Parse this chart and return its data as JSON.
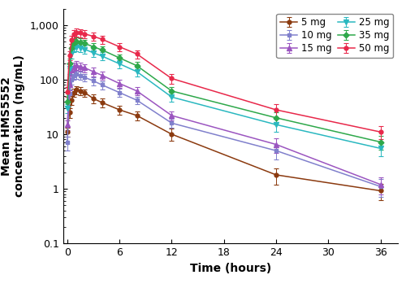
{
  "xlabel": "Time (hours)",
  "ylabel": "Mean HMS5552\nconcentration (ng/mL)",
  "ylim": [
    0.1,
    2000
  ],
  "xlim": [
    -0.5,
    38
  ],
  "xticks": [
    0,
    6,
    12,
    18,
    24,
    30,
    36
  ],
  "series": [
    {
      "label": "5 mg",
      "color": "#8B3A0F",
      "marker": "o",
      "msize": 3.5,
      "time": [
        0,
        0.25,
        0.5,
        0.75,
        1,
        1.5,
        2,
        3,
        4,
        6,
        8,
        12,
        24,
        36
      ],
      "mean": [
        11,
        25,
        42,
        58,
        65,
        62,
        58,
        45,
        38,
        28,
        22,
        10,
        1.8,
        0.92
      ],
      "err_lo": [
        2,
        5,
        8,
        10,
        11,
        10,
        9,
        8,
        7,
        5,
        4,
        2.5,
        0.6,
        0.3
      ],
      "err_hi": [
        2,
        5,
        8,
        10,
        11,
        10,
        9,
        8,
        7,
        5,
        4,
        2.5,
        0.6,
        0.3
      ]
    },
    {
      "label": "10 mg",
      "color": "#8080CC",
      "marker": "s",
      "msize": 3.5,
      "time": [
        0,
        0.25,
        0.5,
        0.75,
        1,
        1.5,
        2,
        3,
        4,
        6,
        8,
        12,
        24,
        36
      ],
      "mean": [
        7,
        55,
        100,
        120,
        125,
        120,
        110,
        95,
        80,
        58,
        42,
        16,
        5.0,
        1.1
      ],
      "err_lo": [
        2,
        12,
        18,
        20,
        22,
        20,
        18,
        16,
        13,
        10,
        7,
        3,
        1.5,
        0.4
      ],
      "err_hi": [
        2,
        12,
        18,
        20,
        22,
        20,
        18,
        16,
        13,
        10,
        7,
        3,
        1.5,
        0.4
      ]
    },
    {
      "label": "15 mg",
      "color": "#9B55C0",
      "marker": "^",
      "msize": 4,
      "time": [
        0,
        0.25,
        0.5,
        0.75,
        1,
        1.5,
        2,
        3,
        4,
        6,
        8,
        12,
        24,
        36
      ],
      "mean": [
        15,
        80,
        150,
        175,
        185,
        175,
        165,
        140,
        120,
        85,
        62,
        22,
        6.5,
        1.2
      ],
      "err_lo": [
        3,
        16,
        28,
        30,
        32,
        30,
        28,
        24,
        20,
        14,
        10,
        4,
        2,
        0.4
      ],
      "err_hi": [
        3,
        16,
        28,
        30,
        32,
        30,
        28,
        24,
        20,
        14,
        10,
        4,
        2,
        0.4
      ]
    },
    {
      "label": "25 mg",
      "color": "#2AB8C0",
      "marker": "v",
      "msize": 4,
      "time": [
        0,
        0.25,
        0.5,
        0.75,
        1,
        1.5,
        2,
        3,
        4,
        6,
        8,
        12,
        24,
        36
      ],
      "mean": [
        30,
        160,
        300,
        380,
        400,
        385,
        360,
        310,
        270,
        195,
        140,
        48,
        15,
        5.5
      ],
      "err_lo": [
        6,
        32,
        55,
        65,
        68,
        65,
        60,
        52,
        45,
        33,
        24,
        9,
        4,
        1.5
      ],
      "err_hi": [
        6,
        32,
        55,
        65,
        68,
        65,
        60,
        52,
        45,
        33,
        24,
        9,
        4,
        1.5
      ]
    },
    {
      "label": "35 mg",
      "color": "#2EA84A",
      "marker": "D",
      "msize": 3.5,
      "time": [
        0,
        0.25,
        0.5,
        0.75,
        1,
        1.5,
        2,
        3,
        4,
        6,
        8,
        12,
        24,
        36
      ],
      "mean": [
        40,
        200,
        380,
        470,
        500,
        485,
        460,
        400,
        350,
        250,
        180,
        62,
        20,
        7.2
      ],
      "err_lo": [
        8,
        40,
        65,
        80,
        85,
        82,
        78,
        68,
        60,
        42,
        30,
        12,
        5,
        2
      ],
      "err_hi": [
        8,
        40,
        65,
        80,
        85,
        82,
        78,
        68,
        60,
        42,
        30,
        12,
        5,
        2
      ]
    },
    {
      "label": "50 mg",
      "color": "#E8284A",
      "marker": "o",
      "msize": 3.5,
      "time": [
        0,
        0.25,
        0.5,
        0.75,
        1,
        1.5,
        2,
        3,
        4,
        6,
        8,
        12,
        24,
        36
      ],
      "mean": [
        60,
        280,
        540,
        680,
        730,
        720,
        690,
        620,
        550,
        400,
        295,
        105,
        28,
        11
      ],
      "err_lo": [
        12,
        55,
        95,
        115,
        125,
        120,
        115,
        105,
        92,
        68,
        50,
        20,
        8,
        3
      ],
      "err_hi": [
        12,
        55,
        95,
        115,
        125,
        120,
        115,
        105,
        92,
        68,
        50,
        20,
        8,
        3
      ]
    }
  ],
  "fontsize_label": 10,
  "fontsize_tick": 9,
  "fontsize_legend": 8.5
}
